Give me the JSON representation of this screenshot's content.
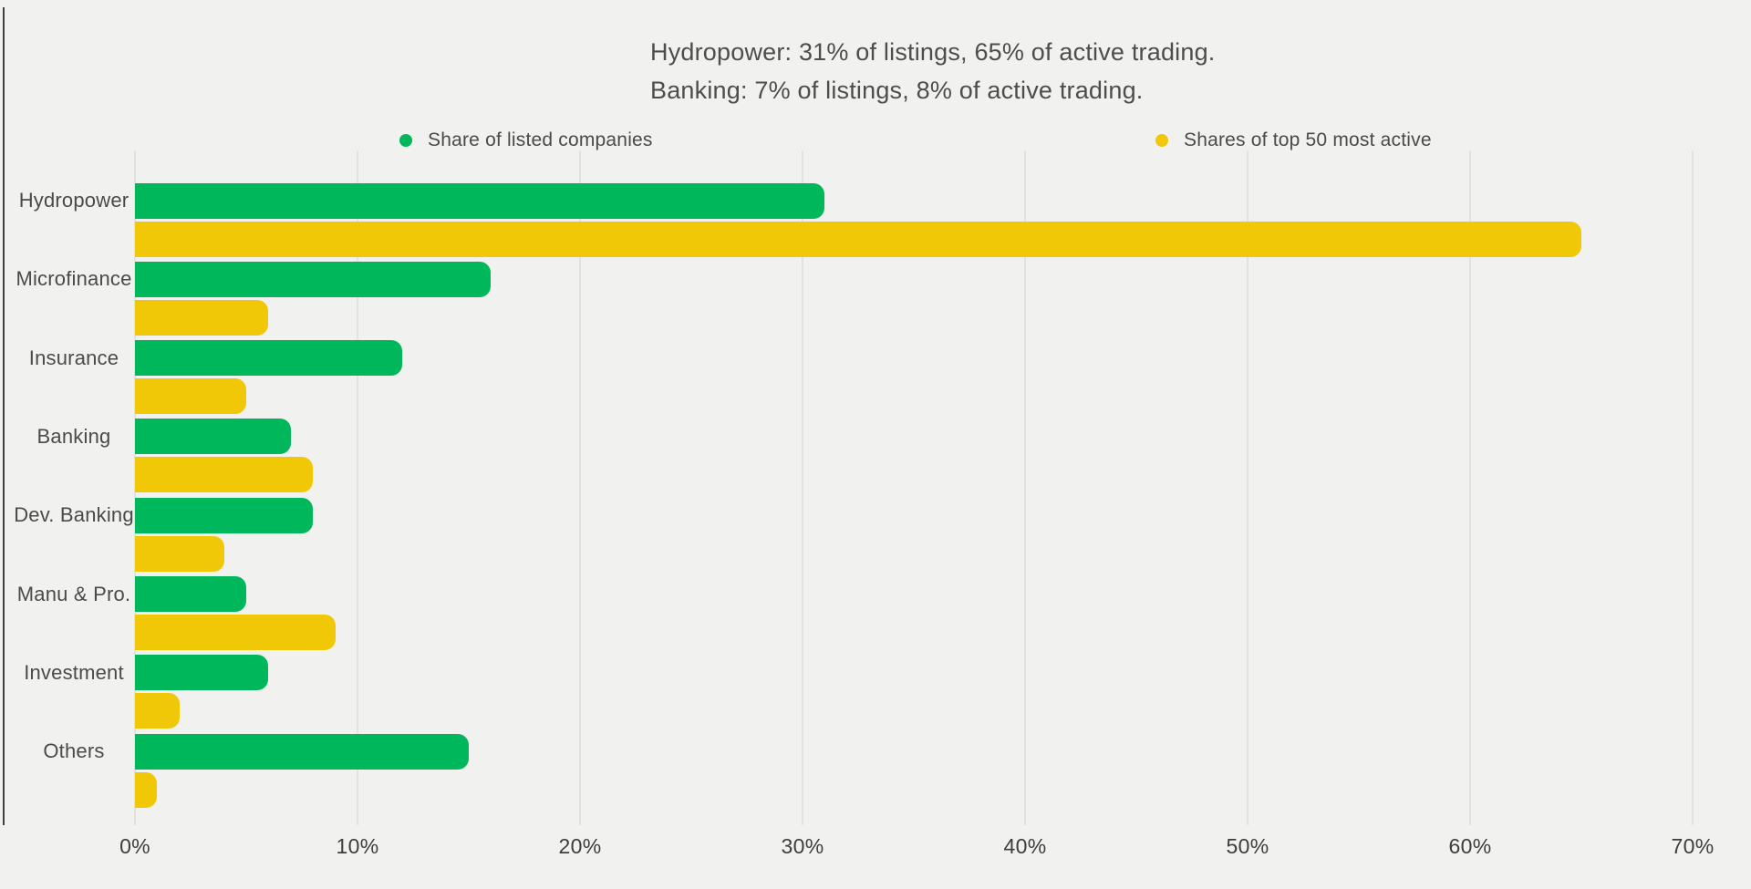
{
  "annotation": {
    "line1": "Hydropower: 31% of listings, 65% of active trading.",
    "line2": "Banking: 7% of listings, 8% of active trading."
  },
  "legend": {
    "listed": {
      "label": "Share of listed companies",
      "color": "#00b75b"
    },
    "active": {
      "label": "Shares of top 50 most active",
      "color": "#f0c808"
    }
  },
  "chart_data": {
    "type": "bar",
    "orientation": "horizontal",
    "title": "",
    "categories": [
      "Hydropower",
      "Microfinance",
      "Insurance",
      "Banking",
      "Dev. Banking",
      "Manu & Pro.",
      "Investment",
      "Others"
    ],
    "series": [
      {
        "name": "Share of listed companies",
        "color": "#00b75b",
        "values": [
          31,
          16,
          12,
          7,
          8,
          5,
          6,
          15
        ]
      },
      {
        "name": "Shares of top 50 most active",
        "color": "#f0c808",
        "values": [
          65,
          6,
          5,
          8,
          4,
          9,
          2,
          1
        ]
      }
    ],
    "x_tick_labels": [
      "0%",
      "10%",
      "20%",
      "30%",
      "40%",
      "50%",
      "60%",
      "70%"
    ],
    "xlim": [
      0,
      70
    ],
    "grid": true,
    "legend_position": "top",
    "unit": "%"
  },
  "colors": {
    "background": "#f1f1ef",
    "gridline": "#e2e2e0",
    "axis_line": "#3f3f41",
    "text": "#4a4a4a"
  }
}
